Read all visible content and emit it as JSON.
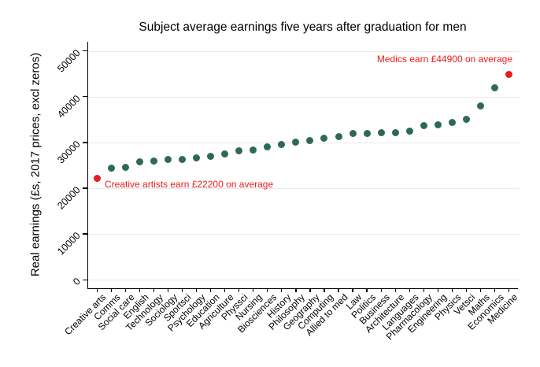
{
  "chart_data": {
    "type": "scatter",
    "title": "Subject average earnings five years after graduation for men",
    "xlabel": "",
    "ylabel": "Real earnings (£s, 2017 prices, excl zeros)",
    "categories": [
      "Creative arts",
      "Comms",
      "Social care",
      "English",
      "Technology",
      "Sociology",
      "Sportsci",
      "Psychology",
      "Education",
      "Agriculture",
      "Physsci",
      "Nursing",
      "Biosciences",
      "History",
      "Philosophy",
      "Geography",
      "Computing",
      "Allied to med",
      "Law",
      "Politics",
      "Business",
      "Architecture",
      "Languages",
      "Pharmacology",
      "Engineering",
      "Physics",
      "Vetsci",
      "Maths",
      "Economics",
      "Medicine"
    ],
    "values": [
      22200,
      24400,
      24600,
      25800,
      26000,
      26200,
      26300,
      26600,
      27000,
      27400,
      28100,
      28300,
      29000,
      29600,
      30000,
      30400,
      30900,
      31300,
      31900,
      32000,
      32100,
      32200,
      32500,
      33600,
      33900,
      34400,
      35000,
      37900,
      41900,
      44900
    ],
    "yticks": [
      0,
      10000,
      20000,
      30000,
      40000,
      50000
    ],
    "ylim": [
      0,
      52000
    ],
    "grid": true,
    "legend_position": "none",
    "dot_color": "#2e6a51",
    "highlight_color": "#ea1c1c",
    "highlighted_categories": [
      "Creative arts",
      "Medicine"
    ],
    "annotations": [
      {
        "text": "Creative artists earn £22200 on average",
        "target": "Creative arts",
        "value": 22200
      },
      {
        "text": "Medics earn £44900 on average",
        "target": "Medicine",
        "value": 44900
      }
    ]
  }
}
